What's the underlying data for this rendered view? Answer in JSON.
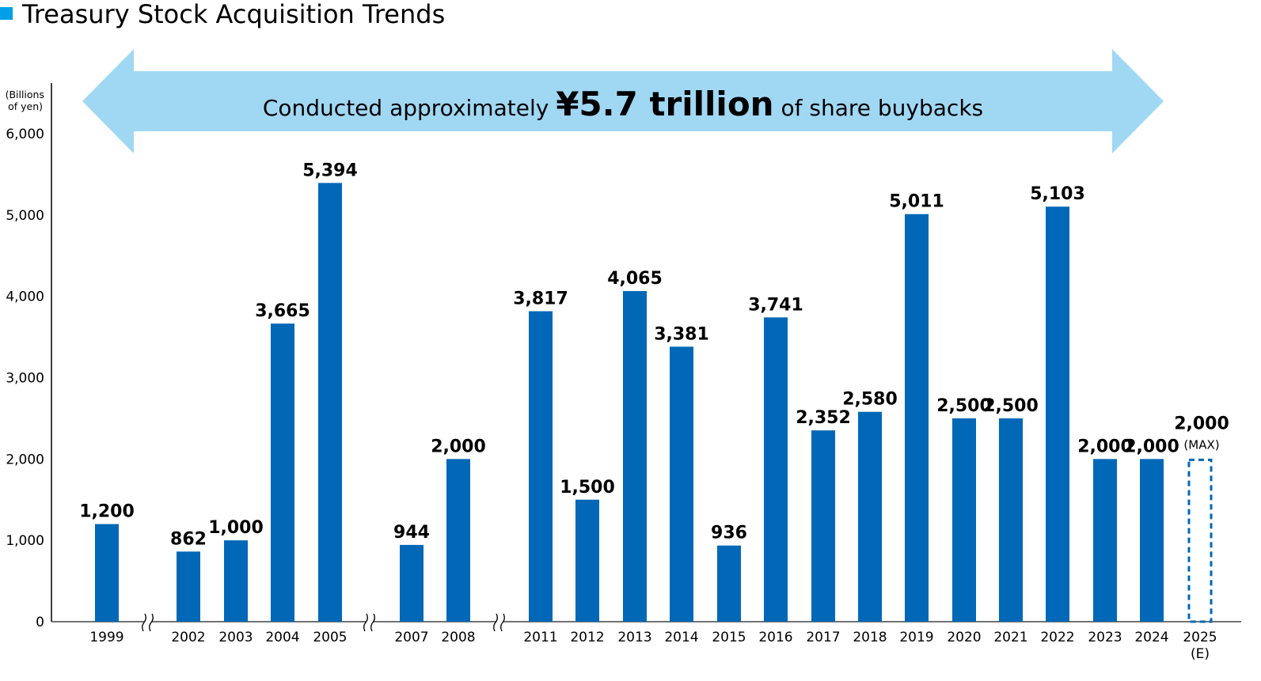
{
  "chart_data": {
    "type": "bar",
    "title": "Treasury Stock Acquisition Trends",
    "ylabel": "(Billions of yen)",
    "ylabel_lines": [
      "(Billions",
      "of yen)"
    ],
    "ylim": [
      0,
      6000
    ],
    "yticks": [
      "0",
      "1,000",
      "2,000",
      "3,000",
      "4,000",
      "5,000",
      "6,000"
    ],
    "ytick_values": [
      0,
      1000,
      2000,
      3000,
      4000,
      5000,
      6000
    ],
    "grid": false,
    "axis_breaks_after": [
      "1999",
      "2005",
      "2008"
    ],
    "categories": [
      "1999",
      "2002",
      "2003",
      "2004",
      "2005",
      "2007",
      "2008",
      "2011",
      "2012",
      "2013",
      "2014",
      "2015",
      "2016",
      "2017",
      "2018",
      "2019",
      "2020",
      "2021",
      "2022",
      "2023",
      "2024",
      "2025"
    ],
    "category_notes": {
      "2025": "(E)"
    },
    "values": [
      1200,
      862,
      1000,
      3665,
      5394,
      944,
      2000,
      3817,
      1500,
      4065,
      3381,
      936,
      3741,
      2352,
      2580,
      5011,
      2500,
      2500,
      5103,
      2000,
      2000,
      2000
    ],
    "data_labels": [
      "1,200",
      "862",
      "1,000",
      "3,665",
      "5,394",
      "944",
      "2,000",
      "3,817",
      "1,500",
      "4,065",
      "3,381",
      "936",
      "3,741",
      "2,352",
      "2,580",
      "5,011",
      "2,500",
      "2,500",
      "5,103",
      "2,000",
      "2,000",
      "2,000"
    ],
    "estimated_category": "2025",
    "estimated_label_note": "(MAX)",
    "bar_color": "#0068b7",
    "title_marker_color": "#00a0e9",
    "annotation": {
      "prefix": "Conducted approximately ",
      "highlight": "¥5.7 trillion",
      "suffix": " of share buybacks",
      "arrow_color": "#a0d8f4"
    }
  }
}
